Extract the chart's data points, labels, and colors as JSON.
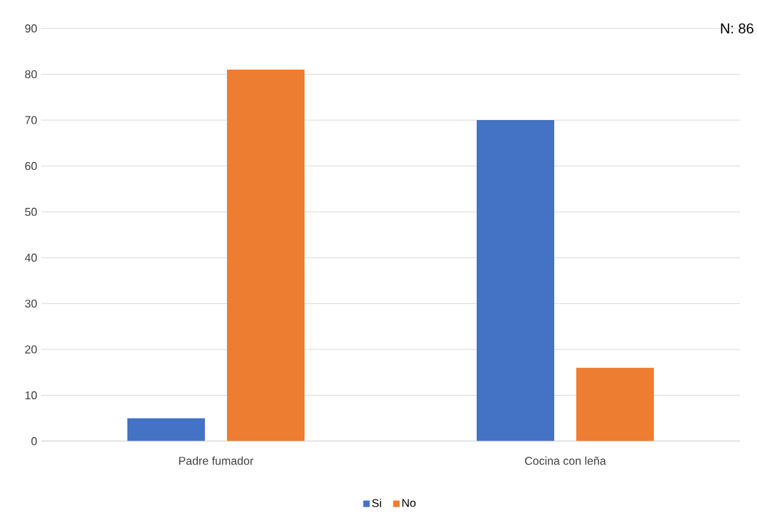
{
  "chart_data": {
    "type": "bar",
    "categories": [
      "Padre fumador",
      "Cocina con leña"
    ],
    "series": [
      {
        "name": "Si",
        "color": "#4472c4",
        "values": [
          5,
          70
        ]
      },
      {
        "name": "No",
        "color": "#ed7d31",
        "values": [
          81,
          16
        ]
      }
    ],
    "ylim": [
      0,
      90
    ],
    "yticks": [
      0,
      10,
      20,
      30,
      40,
      50,
      60,
      70,
      80,
      90
    ],
    "grid": "y",
    "legend": "bottom",
    "annotations": [
      "N: 86"
    ]
  }
}
